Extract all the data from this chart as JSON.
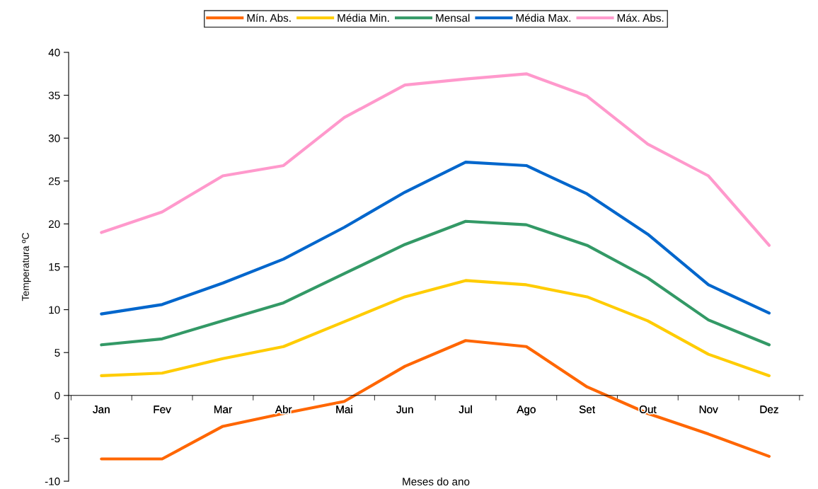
{
  "chart_data": {
    "type": "line",
    "xlabel": "Meses do ano",
    "ylabel": "Temperatura ºC",
    "categories": [
      "Jan",
      "Fev",
      "Mar",
      "Abr",
      "Mai",
      "Jun",
      "Jul",
      "Ago",
      "Set",
      "Out",
      "Nov",
      "Dez"
    ],
    "series": [
      {
        "name": "Mín. Abs.",
        "color": "#ff6600",
        "values": [
          -7.4,
          -7.4,
          -3.6,
          -2.1,
          -0.7,
          3.4,
          6.4,
          5.7,
          1.0,
          -2.1,
          -4.5,
          -7.1
        ]
      },
      {
        "name": "Média Min.",
        "color": "#ffcc00",
        "values": [
          2.3,
          2.6,
          4.3,
          5.7,
          8.6,
          11.5,
          13.4,
          12.9,
          11.5,
          8.7,
          4.8,
          2.3
        ]
      },
      {
        "name": "Mensal",
        "color": "#339966",
        "values": [
          5.9,
          6.6,
          8.7,
          10.8,
          14.2,
          17.6,
          20.3,
          19.9,
          17.5,
          13.7,
          8.8,
          5.9
        ]
      },
      {
        "name": "Média Max.",
        "color": "#0066cc",
        "values": [
          9.5,
          10.6,
          13.1,
          15.9,
          19.6,
          23.7,
          27.2,
          26.8,
          23.5,
          18.8,
          12.9,
          9.6
        ]
      },
      {
        "name": "Máx. Abs.",
        "color": "#ff99cc",
        "values": [
          19.0,
          21.4,
          25.6,
          26.8,
          32.4,
          36.2,
          36.9,
          37.5,
          34.9,
          29.3,
          25.6,
          17.5
        ]
      }
    ],
    "ylim": [
      -10,
      40
    ],
    "yticks": [
      -10,
      -5,
      0,
      5,
      10,
      15,
      20,
      25,
      30,
      35,
      40
    ],
    "grid": false,
    "legend": "top",
    "marker": "none",
    "line_style": "solid"
  }
}
